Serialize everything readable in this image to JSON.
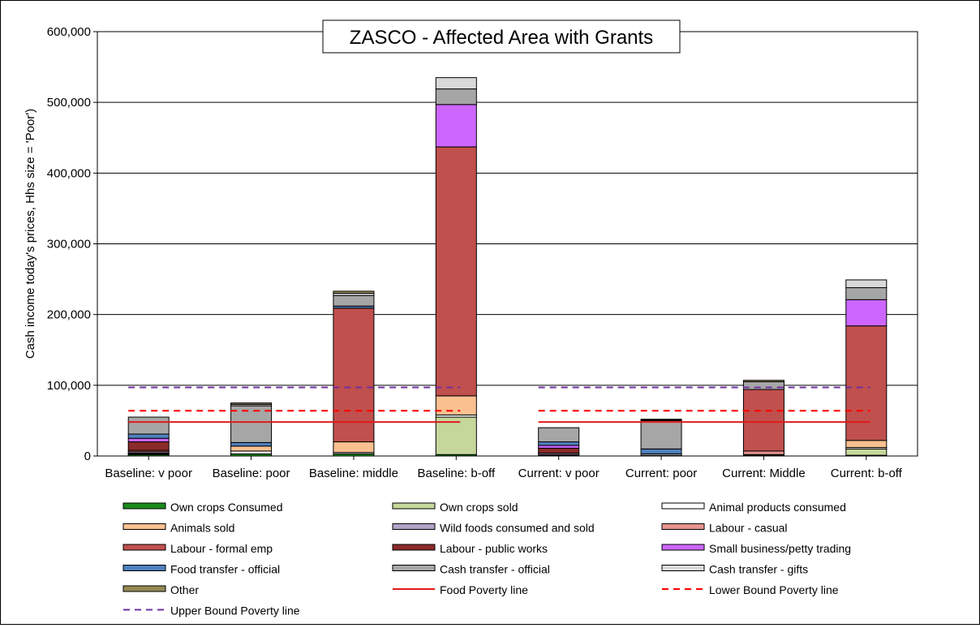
{
  "chart_data": {
    "type": "bar",
    "stacked": true,
    "title": "ZASCO - Affected Area with Grants",
    "xlabel": "",
    "ylabel": "Cash income today's prices, Hhs size = 'Poor')",
    "ylim": [
      0,
      600000
    ],
    "yticks": [
      0,
      100000,
      200000,
      300000,
      400000,
      500000,
      600000
    ],
    "ytick_labels": [
      "0",
      "100,000",
      "200,000",
      "300,000",
      "400,000",
      "500,000",
      "600,000"
    ],
    "grid": true,
    "legend_position": "bottom",
    "categories": [
      "Baseline: v poor",
      "Baseline: poor",
      "Baseline: middle",
      "Baseline: b-off",
      "Current: v poor",
      "Current: poor",
      "Current: Middle",
      "Current: b-off"
    ],
    "series": [
      {
        "name": "Own crops Consumed",
        "color": "#1a8a1a",
        "values": [
          2000,
          3000,
          3000,
          2000,
          1000,
          1000,
          1000,
          1000
        ]
      },
      {
        "name": "Own crops sold",
        "color": "#c5d79b",
        "values": [
          0,
          0,
          0,
          53000,
          0,
          0,
          0,
          9000
        ]
      },
      {
        "name": "Animal products consumed",
        "color": "#ffffff",
        "values": [
          1000,
          4000,
          2000,
          3000,
          1000,
          2000,
          1000,
          2000
        ]
      },
      {
        "name": "Animals sold",
        "color": "#fac090",
        "values": [
          1000,
          7000,
          15000,
          27000,
          0,
          0,
          0,
          10000
        ]
      },
      {
        "name": "Wild foods consumed and sold",
        "color": "#b3a2c7",
        "values": [
          2000,
          0,
          0,
          0,
          2000,
          0,
          0,
          0
        ]
      },
      {
        "name": "Labour - casual",
        "color": "#e6948f",
        "values": [
          0,
          0,
          0,
          0,
          0,
          0,
          5000,
          0
        ]
      },
      {
        "name": "Labour - formal emp",
        "color": "#c0504d",
        "values": [
          2000,
          0,
          189000,
          352000,
          0,
          0,
          87000,
          162000
        ]
      },
      {
        "name": "Labour - public works",
        "color": "#8b2a2a",
        "values": [
          12000,
          0,
          0,
          0,
          7000,
          0,
          0,
          0
        ]
      },
      {
        "name": "Small business/petty trading",
        "color": "#cc66ff",
        "values": [
          5000,
          0,
          0,
          60000,
          4000,
          0,
          0,
          37000
        ]
      },
      {
        "name": "Food transfer - official",
        "color": "#4f81bd",
        "values": [
          6000,
          5000,
          3000,
          0,
          5000,
          7000,
          0,
          0
        ]
      },
      {
        "name": "Cash transfer - official",
        "color": "#a6a6a6",
        "values": [
          24000,
          52000,
          15000,
          22000,
          20000,
          40000,
          11000,
          17000
        ]
      },
      {
        "name": "Cash transfer - gifts",
        "color": "#d9d9d9",
        "values": [
          0,
          2000,
          3000,
          16000,
          0,
          1000,
          0,
          11000
        ]
      },
      {
        "name": "Other",
        "color": "#948a54",
        "values": [
          0,
          2000,
          3000,
          0,
          0,
          1000,
          2000,
          0
        ]
      }
    ],
    "lines": [
      {
        "name": "Food Poverty line",
        "color": "#e31a1c",
        "style": "solid",
        "value": 48000
      },
      {
        "name": "Lower Bound Poverty line",
        "color": "#ff0000",
        "style": "dashed",
        "value": 64000
      },
      {
        "name": "Upper Bound Poverty line",
        "color": "#7030a0",
        "style": "dashed",
        "value": 97000
      }
    ],
    "legend_order": [
      "Own crops Consumed",
      "Own crops sold",
      "Animal products consumed",
      "Animals sold",
      "Wild foods consumed and sold",
      "Labour - casual",
      "Labour - formal emp",
      "Labour - public works",
      "Small business/petty trading",
      "Food transfer - official",
      "Cash transfer - official",
      "Cash transfer - gifts",
      "Other",
      "Food Poverty line",
      "Lower Bound Poverty line",
      "Upper Bound Poverty line"
    ]
  }
}
